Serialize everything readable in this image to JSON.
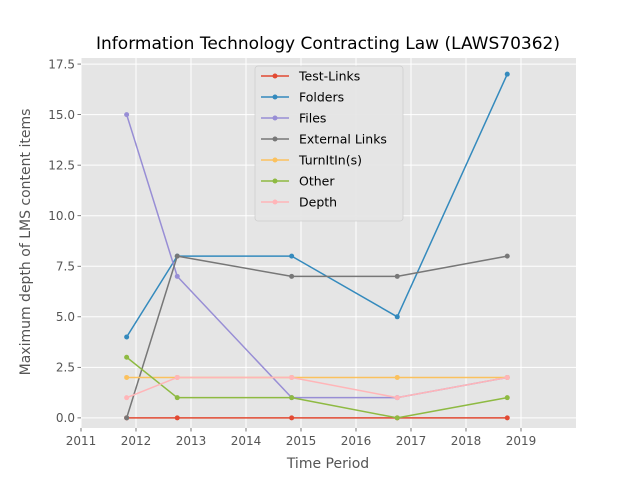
{
  "chart_data": {
    "type": "line",
    "title": "Information Technology Contracting Law (LAWS70362)",
    "xlabel": "Time Period",
    "ylabel": "Maximum depth of LMS content items",
    "xlim": [
      2011.0,
      2020.0
    ],
    "ylim": [
      -0.5,
      17.8
    ],
    "x_ticks": [
      2011,
      2012,
      2013,
      2014,
      2015,
      2016,
      2017,
      2018,
      2019
    ],
    "y_ticks": [
      0.0,
      2.5,
      5.0,
      7.5,
      10.0,
      12.5,
      15.0,
      17.5
    ],
    "grid": true,
    "legend_position": "top-center",
    "x": [
      2011.83,
      2012.75,
      2014.83,
      2016.75,
      2018.75
    ],
    "series": [
      {
        "name": "Test-Links",
        "color": "#E24A33",
        "values": [
          0,
          0,
          0,
          0,
          0
        ]
      },
      {
        "name": "Folders",
        "color": "#348ABD",
        "values": [
          4,
          8,
          8,
          5,
          17
        ]
      },
      {
        "name": "Files",
        "color": "#988ED5",
        "values": [
          15,
          7,
          1,
          1,
          2
        ]
      },
      {
        "name": "External Links",
        "color": "#777777",
        "values": [
          0,
          8,
          7,
          7,
          8
        ]
      },
      {
        "name": "TurnItIn(s)",
        "color": "#FBC15E",
        "values": [
          2,
          2,
          2,
          2,
          2
        ]
      },
      {
        "name": "Other",
        "color": "#8EBA42",
        "values": [
          3,
          1,
          1,
          0,
          1
        ]
      },
      {
        "name": "Depth",
        "color": "#FFB5B8",
        "values": [
          1,
          2,
          2,
          1,
          2
        ]
      }
    ]
  }
}
